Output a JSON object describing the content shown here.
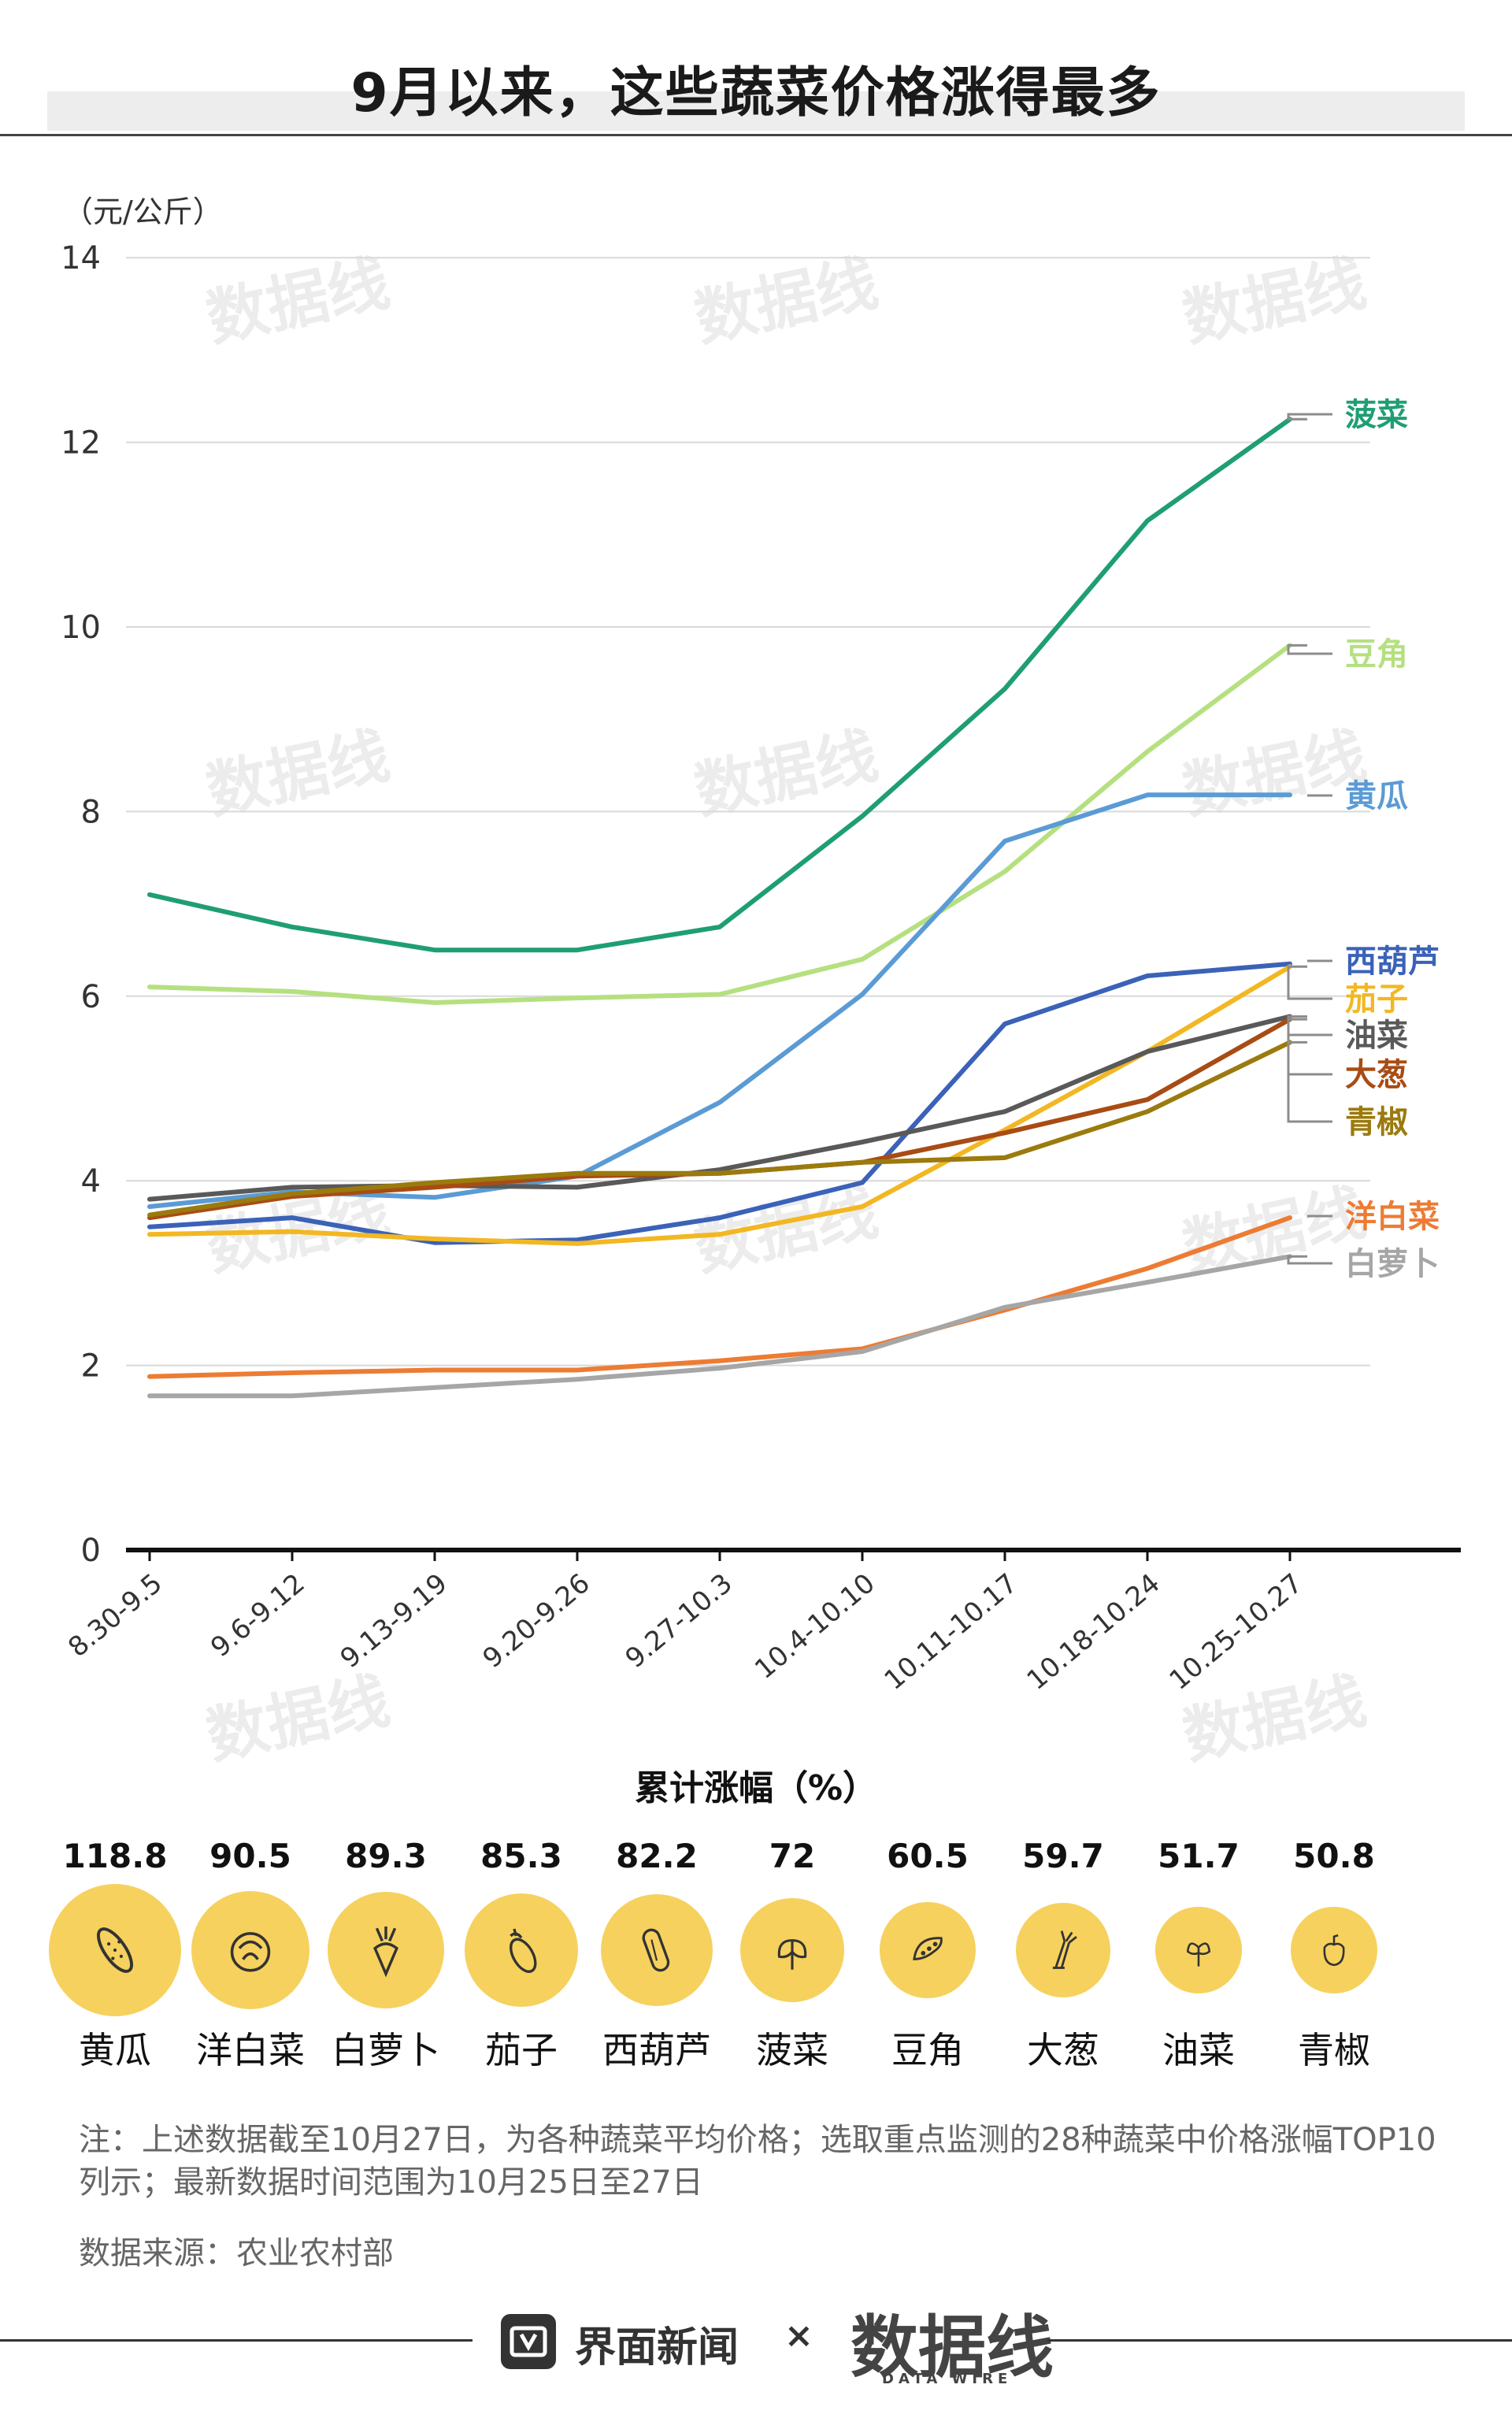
{
  "header": {
    "title": "9月以来，这些蔬菜价格涨得最多"
  },
  "chart_data": {
    "type": "line",
    "ylabel": "（元/公斤）",
    "ylim": [
      0,
      14
    ],
    "yticks": [
      "0",
      "2",
      "4",
      "6",
      "8",
      "10",
      "12",
      "14"
    ],
    "categories": [
      "8.30-9.5",
      "9.6-9.12",
      "9.13-9.19",
      "9.20-9.26",
      "9.27-10.3",
      "10.4-10.10",
      "10.11-10.17",
      "10.18-10.24",
      "10.25-10.27"
    ],
    "series": [
      {
        "name": "菠菜",
        "color": "#1f9e74",
        "values": [
          7.1,
          6.75,
          6.5,
          6.5,
          6.75,
          7.95,
          9.33,
          11.15,
          12.25
        ]
      },
      {
        "name": "豆角",
        "color": "#b5e080",
        "values": [
          6.1,
          6.05,
          5.93,
          5.98,
          6.02,
          6.4,
          7.35,
          8.65,
          9.8
        ]
      },
      {
        "name": "黄瓜",
        "color": "#5b9bd5",
        "values": [
          3.72,
          3.88,
          3.82,
          4.05,
          4.85,
          6.02,
          7.68,
          8.18,
          8.18
        ]
      },
      {
        "name": "西葫芦",
        "color": "#3b62b8",
        "values": [
          3.5,
          3.6,
          3.33,
          3.36,
          3.6,
          3.98,
          5.7,
          6.22,
          6.35
        ]
      },
      {
        "name": "茄子",
        "color": "#f2b722",
        "values": [
          3.42,
          3.45,
          3.37,
          3.32,
          3.42,
          3.72,
          4.55,
          5.4,
          6.32
        ]
      },
      {
        "name": "油菜",
        "color": "#595959",
        "values": [
          3.8,
          3.93,
          3.95,
          3.93,
          4.12,
          4.42,
          4.75,
          5.4,
          5.78
        ]
      },
      {
        "name": "大葱",
        "color": "#a84c14",
        "values": [
          3.6,
          3.83,
          3.93,
          4.05,
          4.08,
          4.2,
          4.52,
          4.88,
          5.75
        ]
      },
      {
        "name": "青椒",
        "color": "#9b7a0e",
        "values": [
          3.63,
          3.86,
          3.98,
          4.08,
          4.08,
          4.2,
          4.25,
          4.75,
          5.5
        ]
      },
      {
        "name": "洋白菜",
        "color": "#ec7c34",
        "values": [
          1.88,
          1.92,
          1.95,
          1.95,
          2.05,
          2.18,
          2.6,
          3.05,
          3.6
        ]
      },
      {
        "name": "白萝卜",
        "color": "#a6a6a6",
        "values": [
          1.67,
          1.67,
          1.76,
          1.85,
          1.97,
          2.15,
          2.63,
          2.9,
          3.18
        ]
      }
    ],
    "watermark": "数据线"
  },
  "cumulative": {
    "title": "累计涨幅（%）",
    "items": [
      {
        "value": "118.8",
        "name": "黄瓜",
        "icon": "cucumber-icon"
      },
      {
        "value": "90.5",
        "name": "洋白菜",
        "icon": "cabbage-icon"
      },
      {
        "value": "89.3",
        "name": "白萝卜",
        "icon": "radish-icon"
      },
      {
        "value": "85.3",
        "name": "茄子",
        "icon": "eggplant-icon"
      },
      {
        "value": "82.2",
        "name": "西葫芦",
        "icon": "zucchini-icon"
      },
      {
        "value": "72",
        "name": "菠菜",
        "icon": "spinach-icon"
      },
      {
        "value": "60.5",
        "name": "豆角",
        "icon": "bean-icon"
      },
      {
        "value": "59.7",
        "name": "大葱",
        "icon": "scallion-icon"
      },
      {
        "value": "51.7",
        "name": "油菜",
        "icon": "greens-icon"
      },
      {
        "value": "50.8",
        "name": "青椒",
        "icon": "pepper-icon"
      }
    ]
  },
  "notes": {
    "note": "注：上述数据截至10月27日，为各种蔬菜平均价格；选取重点监测的28种蔬菜中价格涨幅TOP10列示；最新数据时间范围为10月25日至27日",
    "source": "数据来源：农业农村部"
  },
  "footer": {
    "brand": "界面新闻",
    "separator": "×",
    "brand2": "数据线",
    "brand2_sub": "DATA WIRE"
  }
}
